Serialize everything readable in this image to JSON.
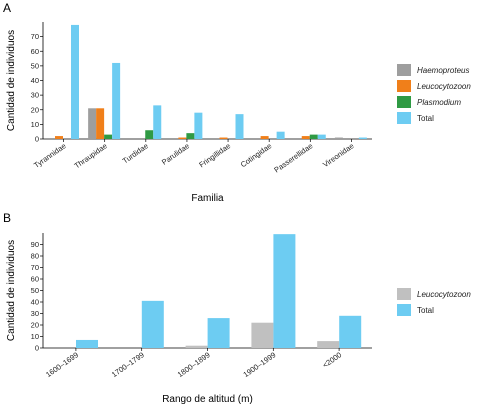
{
  "colors": {
    "Haemoproteus": "#9e9e9e",
    "Leucocytozoon": "#f07f1a",
    "Plasmodium": "#2f9a44",
    "Total": "#6dccf2",
    "Leucocytozoon_B": "#c0c0c0"
  },
  "chart_data": [
    {
      "panel": "A",
      "type": "bar",
      "xlabel": "Familia",
      "ylabel": "Cantidad de individuos",
      "ylim": [
        0,
        80
      ],
      "yticks": [
        0,
        10,
        20,
        30,
        40,
        50,
        60,
        70
      ],
      "legend_position": "right",
      "categories": [
        "Tyrannidae",
        "Thraupidae",
        "Turdidae",
        "Parulidae",
        "Fringillidae",
        "Cotingidae",
        "Passerellidae",
        "Vireonidae"
      ],
      "series": [
        {
          "name": "Haemoproteus",
          "italic": true,
          "values": [
            0,
            21,
            0,
            0,
            0,
            0,
            0,
            1
          ]
        },
        {
          "name": "Leucocytozoon",
          "italic": true,
          "values": [
            2,
            21,
            0,
            1,
            1,
            2,
            2,
            0
          ]
        },
        {
          "name": "Plasmodium",
          "italic": true,
          "values": [
            0,
            3,
            6,
            4,
            0,
            0,
            3,
            0
          ]
        },
        {
          "name": "Total",
          "italic": false,
          "values": [
            78,
            52,
            23,
            18,
            17,
            5,
            3,
            1
          ]
        }
      ]
    },
    {
      "panel": "B",
      "type": "bar",
      "xlabel": "Rango de altitud (m)",
      "ylabel": "Cantidad de individuos",
      "ylim": [
        0,
        100
      ],
      "yticks": [
        0,
        10,
        20,
        30,
        40,
        50,
        60,
        70,
        80,
        90
      ],
      "legend_position": "right",
      "categories": [
        "1600–1699",
        "1700–1799",
        "1800–1899",
        "1900–1999",
        "<2000"
      ],
      "series": [
        {
          "name": "Leucocytozoon",
          "italic": true,
          "values": [
            0,
            0,
            2,
            22,
            6
          ]
        },
        {
          "name": "Total",
          "italic": false,
          "values": [
            7,
            41,
            26,
            99,
            28
          ]
        }
      ]
    }
  ]
}
